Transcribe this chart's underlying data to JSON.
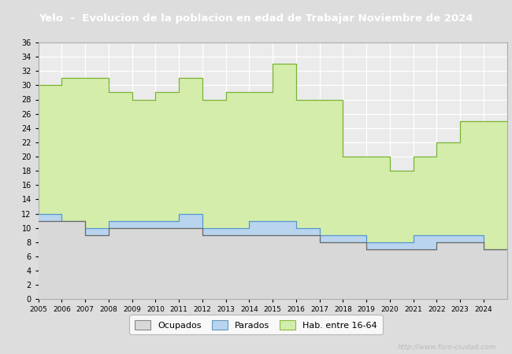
{
  "title": "Yelo  -  Evolucion de la poblacion en edad de Trabajar Noviembre de 2024",
  "title_bg": "#3a6db5",
  "title_color": "white",
  "ylim": [
    0,
    36
  ],
  "yticks": [
    0,
    2,
    4,
    6,
    8,
    10,
    12,
    14,
    16,
    18,
    20,
    22,
    24,
    26,
    28,
    30,
    32,
    34,
    36
  ],
  "years": [
    2005,
    2006,
    2007,
    2008,
    2009,
    2010,
    2011,
    2012,
    2013,
    2014,
    2015,
    2016,
    2017,
    2018,
    2019,
    2020,
    2021,
    2022,
    2023,
    2024
  ],
  "hab_values": [
    30,
    31,
    31,
    29,
    28,
    29,
    31,
    28,
    29,
    29,
    33,
    28,
    28,
    20,
    20,
    18,
    20,
    22,
    25,
    25
  ],
  "parados_values": [
    12,
    11,
    10,
    11,
    11,
    11,
    12,
    10,
    10,
    11,
    11,
    10,
    9,
    9,
    8,
    8,
    9,
    9,
    9,
    7
  ],
  "ocupados_values": [
    11,
    11,
    9,
    10,
    10,
    10,
    10,
    9,
    9,
    9,
    9,
    9,
    8,
    8,
    7,
    7,
    7,
    8,
    8,
    7
  ],
  "hab_color": "#d4edaa",
  "hab_edge": "#7ab335",
  "parados_color": "#b8d4ee",
  "parados_edge": "#5599cc",
  "ocupados_color": "#d8d8d8",
  "ocupados_edge": "#666666",
  "bg_color": "#dddddd",
  "plot_bg": "#ebebeb",
  "grid_color": "white",
  "url_text": "http://www.foro-ciudad.com",
  "legend_labels": [
    "Ocupados",
    "Parados",
    "Hab. entre 16-64"
  ]
}
